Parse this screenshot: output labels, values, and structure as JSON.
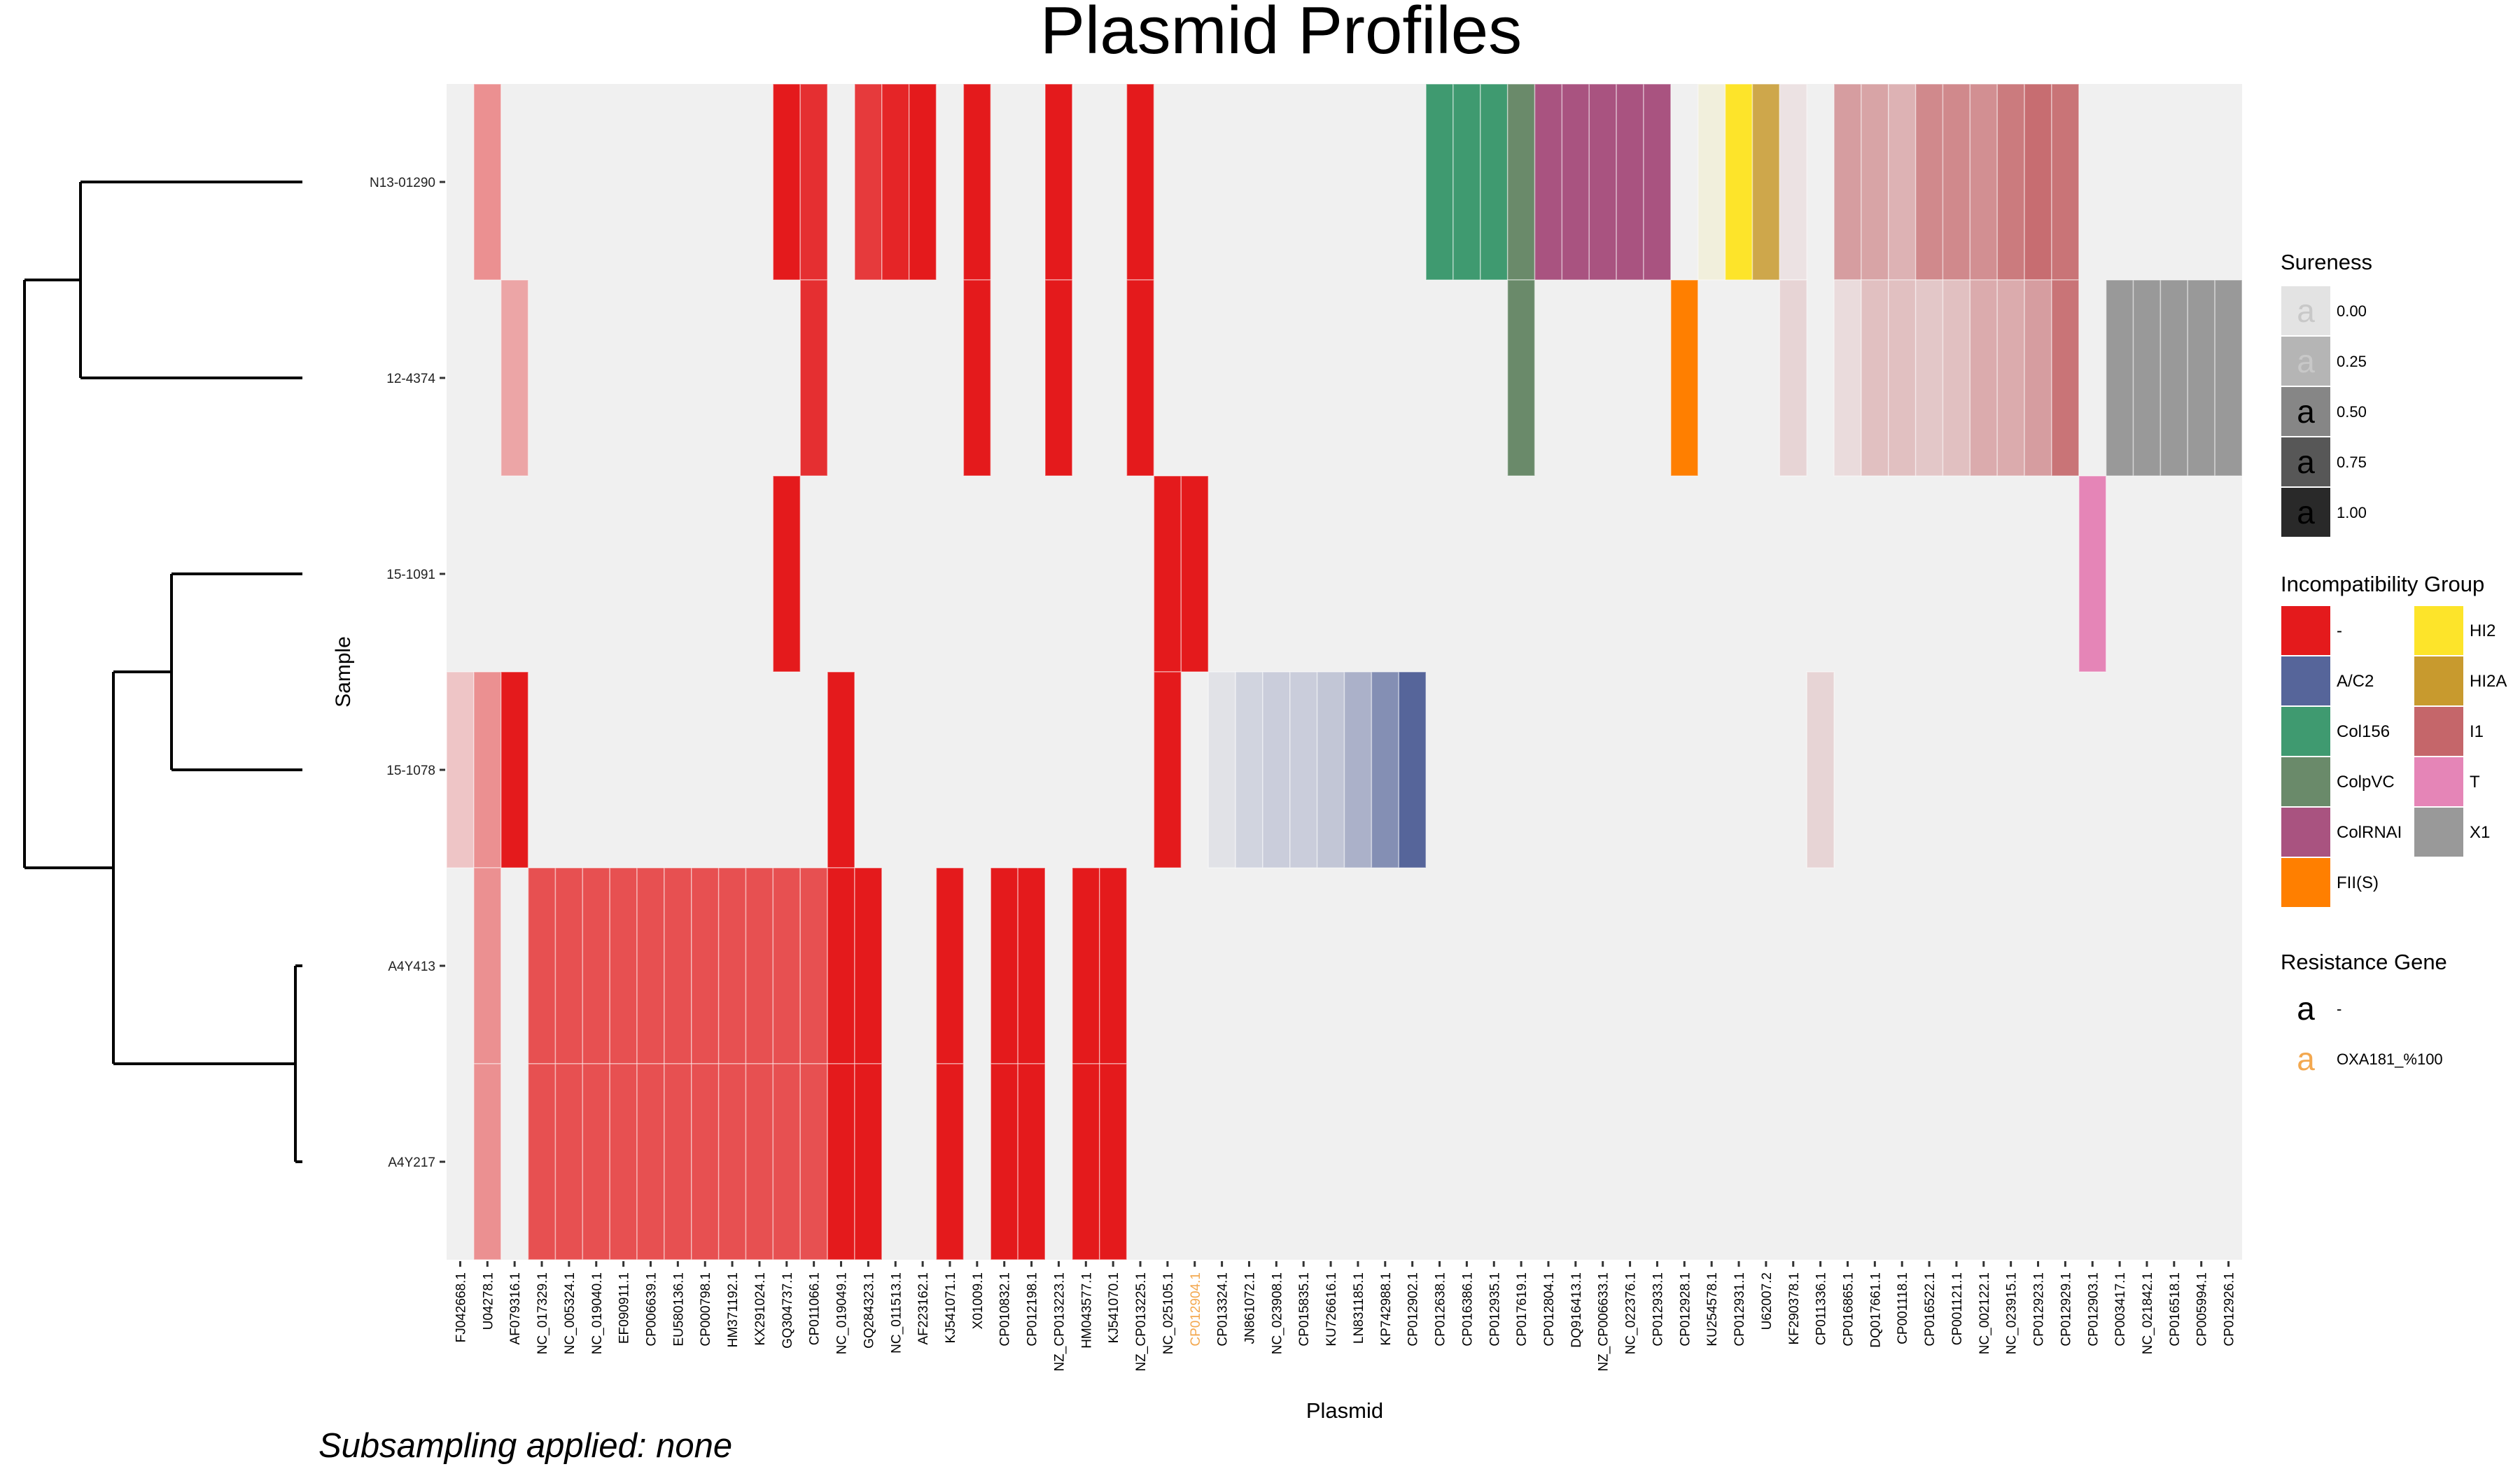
{
  "chart_data": {
    "type": "heatmap",
    "title": "Plasmid Profiles",
    "xlabel": "Plasmid",
    "ylabel": "Sample",
    "caption": "Subsampling applied: none",
    "samples": [
      "N13-01290",
      "12-4374",
      "15-1091",
      "15-1078",
      "A4Y413",
      "A4Y217"
    ],
    "plasmids": [
      {
        "name": "FJ042668.1",
        "group": "-",
        "gene": "-"
      },
      {
        "name": "U04278.1",
        "group": "-",
        "gene": "-"
      },
      {
        "name": "AF079316.1",
        "group": "-",
        "gene": "-"
      },
      {
        "name": "NC_017329.1",
        "group": "-",
        "gene": "-"
      },
      {
        "name": "NC_005324.1",
        "group": "-",
        "gene": "-"
      },
      {
        "name": "NC_019040.1",
        "group": "-",
        "gene": "-"
      },
      {
        "name": "EF090911.1",
        "group": "-",
        "gene": "-"
      },
      {
        "name": "CP006639.1",
        "group": "-",
        "gene": "-"
      },
      {
        "name": "EU580136.1",
        "group": "-",
        "gene": "-"
      },
      {
        "name": "CP000798.1",
        "group": "-",
        "gene": "-"
      },
      {
        "name": "HM371192.1",
        "group": "-",
        "gene": "-"
      },
      {
        "name": "KX291024.1",
        "group": "-",
        "gene": "-"
      },
      {
        "name": "GQ304737.1",
        "group": "-",
        "gene": "-"
      },
      {
        "name": "CP011066.1",
        "group": "-",
        "gene": "-"
      },
      {
        "name": "NC_019049.1",
        "group": "-",
        "gene": "-"
      },
      {
        "name": "GQ284323.1",
        "group": "-",
        "gene": "-"
      },
      {
        "name": "NC_011513.1",
        "group": "-",
        "gene": "-"
      },
      {
        "name": "AF223162.1",
        "group": "-",
        "gene": "-"
      },
      {
        "name": "KJ541071.1",
        "group": "-",
        "gene": "-"
      },
      {
        "name": "X01009.1",
        "group": "-",
        "gene": "-"
      },
      {
        "name": "CP010832.1",
        "group": "-",
        "gene": "-"
      },
      {
        "name": "CP012198.1",
        "group": "-",
        "gene": "-"
      },
      {
        "name": "NZ_CP013223.1",
        "group": "-",
        "gene": "-"
      },
      {
        "name": "HM043577.1",
        "group": "-",
        "gene": "-"
      },
      {
        "name": "KJ541070.1",
        "group": "-",
        "gene": "-"
      },
      {
        "name": "NZ_CP013225.1",
        "group": "-",
        "gene": "-"
      },
      {
        "name": "NC_025105.1",
        "group": "-",
        "gene": "-"
      },
      {
        "name": "CP012904.1",
        "group": "-",
        "gene": "OXA181_%100"
      },
      {
        "name": "CP013324.1",
        "group": "A/C2",
        "gene": "-"
      },
      {
        "name": "JN861072.1",
        "group": "A/C2",
        "gene": "-"
      },
      {
        "name": "NC_023908.1",
        "group": "A/C2",
        "gene": "-"
      },
      {
        "name": "CP015835.1",
        "group": "A/C2",
        "gene": "-"
      },
      {
        "name": "KU726616.1",
        "group": "A/C2",
        "gene": "-"
      },
      {
        "name": "LN831185.1",
        "group": "A/C2",
        "gene": "-"
      },
      {
        "name": "KP742988.1",
        "group": "A/C2",
        "gene": "-"
      },
      {
        "name": "CP012902.1",
        "group": "A/C2",
        "gene": "-"
      },
      {
        "name": "CP012638.1",
        "group": "Col156",
        "gene": "-"
      },
      {
        "name": "CP016386.1",
        "group": "Col156",
        "gene": "-"
      },
      {
        "name": "CP012935.1",
        "group": "Col156",
        "gene": "-"
      },
      {
        "name": "CP017619.1",
        "group": "ColpVC",
        "gene": "-"
      },
      {
        "name": "CP012804.1",
        "group": "ColRNAI",
        "gene": "-"
      },
      {
        "name": "DQ916413.1",
        "group": "ColRNAI",
        "gene": "-"
      },
      {
        "name": "NZ_CP006633.1",
        "group": "ColRNAI",
        "gene": "-"
      },
      {
        "name": "NC_022376.1",
        "group": "ColRNAI",
        "gene": "-"
      },
      {
        "name": "CP012933.1",
        "group": "ColRNAI",
        "gene": "-"
      },
      {
        "name": "CP012928.1",
        "group": "FII(S)",
        "gene": "-"
      },
      {
        "name": "KU254578.1",
        "group": "HI2",
        "gene": "-"
      },
      {
        "name": "CP012931.1",
        "group": "HI2",
        "gene": "-"
      },
      {
        "name": "U62007.2",
        "group": "HI2A",
        "gene": "-"
      },
      {
        "name": "KF290378.1",
        "group": "I1",
        "gene": "-"
      },
      {
        "name": "CP011336.1",
        "group": "I1",
        "gene": "-"
      },
      {
        "name": "CP016865.1",
        "group": "I1",
        "gene": "-"
      },
      {
        "name": "DQ017661.1",
        "group": "I1",
        "gene": "-"
      },
      {
        "name": "CP001118.1",
        "group": "I1",
        "gene": "-"
      },
      {
        "name": "CP016522.1",
        "group": "I1",
        "gene": "-"
      },
      {
        "name": "CP001121.1",
        "group": "I1",
        "gene": "-"
      },
      {
        "name": "NC_002122.1",
        "group": "I1",
        "gene": "-"
      },
      {
        "name": "NC_023915.1",
        "group": "I1",
        "gene": "-"
      },
      {
        "name": "CP012923.1",
        "group": "I1",
        "gene": "-"
      },
      {
        "name": "CP012929.1",
        "group": "I1",
        "gene": "-"
      },
      {
        "name": "CP012903.1",
        "group": "T",
        "gene": "-"
      },
      {
        "name": "CP003417.1",
        "group": "X1",
        "gene": "-"
      },
      {
        "name": "NC_021842.1",
        "group": "X1",
        "gene": "-"
      },
      {
        "name": "CP016518.1",
        "group": "X1",
        "gene": "-"
      },
      {
        "name": "CP005994.1",
        "group": "X1",
        "gene": "-"
      },
      {
        "name": "CP012926.1",
        "group": "X1",
        "gene": "-"
      }
    ],
    "cells": [
      {
        "sample": "N13-01290",
        "plasmid": "U04278.1",
        "sureness": 0.45
      },
      {
        "sample": "N13-01290",
        "plasmid": "GQ304737.1",
        "sureness": 1.0
      },
      {
        "sample": "N13-01290",
        "plasmid": "CP011066.1",
        "sureness": 0.9
      },
      {
        "sample": "N13-01290",
        "plasmid": "GQ284323.1",
        "sureness": 0.85
      },
      {
        "sample": "N13-01290",
        "plasmid": "NC_011513.1",
        "sureness": 0.95
      },
      {
        "sample": "N13-01290",
        "plasmid": "AF223162.1",
        "sureness": 1.0
      },
      {
        "sample": "N13-01290",
        "plasmid": "X01009.1",
        "sureness": 1.0
      },
      {
        "sample": "N13-01290",
        "plasmid": "NZ_CP013223.1",
        "sureness": 1.0
      },
      {
        "sample": "N13-01290",
        "plasmid": "NZ_CP013225.1",
        "sureness": 1.0
      },
      {
        "sample": "N13-01290",
        "plasmid": "CP012638.1",
        "sureness": 1.0
      },
      {
        "sample": "N13-01290",
        "plasmid": "CP016386.1",
        "sureness": 1.0
      },
      {
        "sample": "N13-01290",
        "plasmid": "CP012935.1",
        "sureness": 1.0
      },
      {
        "sample": "N13-01290",
        "plasmid": "CP017619.1",
        "sureness": 1.0
      },
      {
        "sample": "N13-01290",
        "plasmid": "CP012804.1",
        "sureness": 1.0
      },
      {
        "sample": "N13-01290",
        "plasmid": "DQ916413.1",
        "sureness": 1.0
      },
      {
        "sample": "N13-01290",
        "plasmid": "NZ_CP006633.1",
        "sureness": 1.0
      },
      {
        "sample": "N13-01290",
        "plasmid": "NC_022376.1",
        "sureness": 1.0
      },
      {
        "sample": "N13-01290",
        "plasmid": "CP012933.1",
        "sureness": 1.0
      },
      {
        "sample": "N13-01290",
        "plasmid": "KU254578.1",
        "sureness": 0.1
      },
      {
        "sample": "N13-01290",
        "plasmid": "CP012931.1",
        "sureness": 1.0
      },
      {
        "sample": "N13-01290",
        "plasmid": "U62007.2",
        "sureness": 0.85
      },
      {
        "sample": "N13-01290",
        "plasmid": "KF290378.1",
        "sureness": 0.1
      },
      {
        "sample": "N13-01290",
        "plasmid": "CP016865.1",
        "sureness": 0.6
      },
      {
        "sample": "N13-01290",
        "plasmid": "DQ017661.1",
        "sureness": 0.55
      },
      {
        "sample": "N13-01290",
        "plasmid": "CP001118.1",
        "sureness": 0.45
      },
      {
        "sample": "N13-01290",
        "plasmid": "CP016522.1",
        "sureness": 0.75
      },
      {
        "sample": "N13-01290",
        "plasmid": "CP001121.1",
        "sureness": 0.75
      },
      {
        "sample": "N13-01290",
        "plasmid": "NC_002122.1",
        "sureness": 0.7
      },
      {
        "sample": "N13-01290",
        "plasmid": "NC_023915.1",
        "sureness": 0.85
      },
      {
        "sample": "N13-01290",
        "plasmid": "CP012923.1",
        "sureness": 0.95
      },
      {
        "sample": "N13-01290",
        "plasmid": "CP012929.1",
        "sureness": 0.9
      },
      {
        "sample": "12-4374",
        "plasmid": "AF079316.1",
        "sureness": 0.35
      },
      {
        "sample": "12-4374",
        "plasmid": "CP011066.1",
        "sureness": 0.9
      },
      {
        "sample": "12-4374",
        "plasmid": "X01009.1",
        "sureness": 1.0
      },
      {
        "sample": "12-4374",
        "plasmid": "NZ_CP013223.1",
        "sureness": 1.0
      },
      {
        "sample": "12-4374",
        "plasmid": "NZ_CP013225.1",
        "sureness": 1.0
      },
      {
        "sample": "12-4374",
        "plasmid": "CP017619.1",
        "sureness": 1.0
      },
      {
        "sample": "12-4374",
        "plasmid": "CP012928.1",
        "sureness": 1.0
      },
      {
        "sample": "12-4374",
        "plasmid": "KF290378.1",
        "sureness": 0.2
      },
      {
        "sample": "12-4374",
        "plasmid": "CP016865.1",
        "sureness": 0.15
      },
      {
        "sample": "12-4374",
        "plasmid": "DQ017661.1",
        "sureness": 0.35
      },
      {
        "sample": "12-4374",
        "plasmid": "CP001118.1",
        "sureness": 0.35
      },
      {
        "sample": "12-4374",
        "plasmid": "CP016522.1",
        "sureness": 0.3
      },
      {
        "sample": "12-4374",
        "plasmid": "CP001121.1",
        "sureness": 0.35
      },
      {
        "sample": "12-4374",
        "plasmid": "NC_002122.1",
        "sureness": 0.5
      },
      {
        "sample": "12-4374",
        "plasmid": "NC_023915.1",
        "sureness": 0.5
      },
      {
        "sample": "12-4374",
        "plasmid": "CP012923.1",
        "sureness": 0.6
      },
      {
        "sample": "12-4374",
        "plasmid": "CP012929.1",
        "sureness": 0.9
      },
      {
        "sample": "12-4374",
        "plasmid": "CP003417.1",
        "sureness": 1.0
      },
      {
        "sample": "12-4374",
        "plasmid": "NC_021842.1",
        "sureness": 1.0
      },
      {
        "sample": "12-4374",
        "plasmid": "CP016518.1",
        "sureness": 1.0
      },
      {
        "sample": "12-4374",
        "plasmid": "CP005994.1",
        "sureness": 1.0
      },
      {
        "sample": "12-4374",
        "plasmid": "CP012926.1",
        "sureness": 1.0
      },
      {
        "sample": "15-1091",
        "plasmid": "GQ304737.1",
        "sureness": 1.0
      },
      {
        "sample": "15-1091",
        "plasmid": "NC_025105.1",
        "sureness": 1.0
      },
      {
        "sample": "15-1091",
        "plasmid": "CP012904.1",
        "sureness": 1.0
      },
      {
        "sample": "15-1091",
        "plasmid": "CP012903.1",
        "sureness": 1.0
      },
      {
        "sample": "15-1078",
        "plasmid": "FJ042668.1",
        "sureness": 0.2
      },
      {
        "sample": "15-1078",
        "plasmid": "U04278.1",
        "sureness": 0.45
      },
      {
        "sample": "15-1078",
        "plasmid": "AF079316.1",
        "sureness": 1.0
      },
      {
        "sample": "15-1078",
        "plasmid": "NC_019049.1",
        "sureness": 1.0
      },
      {
        "sample": "15-1078",
        "plasmid": "NC_025105.1",
        "sureness": 1.0
      },
      {
        "sample": "15-1078",
        "plasmid": "CP013324.1",
        "sureness": 0.1
      },
      {
        "sample": "15-1078",
        "plasmid": "JN861072.1",
        "sureness": 0.2
      },
      {
        "sample": "15-1078",
        "plasmid": "NC_023908.1",
        "sureness": 0.25
      },
      {
        "sample": "15-1078",
        "plasmid": "CP015835.1",
        "sureness": 0.25
      },
      {
        "sample": "15-1078",
        "plasmid": "KU726616.1",
        "sureness": 0.3
      },
      {
        "sample": "15-1078",
        "plasmid": "LN831185.1",
        "sureness": 0.45
      },
      {
        "sample": "15-1078",
        "plasmid": "KP742988.1",
        "sureness": 0.7
      },
      {
        "sample": "15-1078",
        "plasmid": "CP012902.1",
        "sureness": 1.0
      },
      {
        "sample": "15-1078",
        "plasmid": "CP011336.1",
        "sureness": 0.2
      },
      {
        "sample": "A4Y413",
        "plasmid": "U04278.1",
        "sureness": 0.45
      },
      {
        "sample": "A4Y413",
        "plasmid": "NC_017329.1",
        "sureness": 0.75
      },
      {
        "sample": "A4Y413",
        "plasmid": "NC_005324.1",
        "sureness": 0.75
      },
      {
        "sample": "A4Y413",
        "plasmid": "NC_019040.1",
        "sureness": 0.75
      },
      {
        "sample": "A4Y413",
        "plasmid": "EF090911.1",
        "sureness": 0.75
      },
      {
        "sample": "A4Y413",
        "plasmid": "CP006639.1",
        "sureness": 0.75
      },
      {
        "sample": "A4Y413",
        "plasmid": "EU580136.1",
        "sureness": 0.75
      },
      {
        "sample": "A4Y413",
        "plasmid": "CP000798.1",
        "sureness": 0.75
      },
      {
        "sample": "A4Y413",
        "plasmid": "HM371192.1",
        "sureness": 0.75
      },
      {
        "sample": "A4Y413",
        "plasmid": "KX291024.1",
        "sureness": 0.75
      },
      {
        "sample": "A4Y413",
        "plasmid": "GQ304737.1",
        "sureness": 0.75
      },
      {
        "sample": "A4Y413",
        "plasmid": "CP011066.1",
        "sureness": 0.75
      },
      {
        "sample": "A4Y413",
        "plasmid": "NC_019049.1",
        "sureness": 1.0
      },
      {
        "sample": "A4Y413",
        "plasmid": "GQ284323.1",
        "sureness": 1.0
      },
      {
        "sample": "A4Y413",
        "plasmid": "KJ541071.1",
        "sureness": 1.0
      },
      {
        "sample": "A4Y413",
        "plasmid": "CP010832.1",
        "sureness": 1.0
      },
      {
        "sample": "A4Y413",
        "plasmid": "CP012198.1",
        "sureness": 1.0
      },
      {
        "sample": "A4Y413",
        "plasmid": "HM043577.1",
        "sureness": 1.0
      },
      {
        "sample": "A4Y413",
        "plasmid": "KJ541070.1",
        "sureness": 1.0
      },
      {
        "sample": "A4Y217",
        "plasmid": "U04278.1",
        "sureness": 0.45
      },
      {
        "sample": "A4Y217",
        "plasmid": "NC_017329.1",
        "sureness": 0.75
      },
      {
        "sample": "A4Y217",
        "plasmid": "NC_005324.1",
        "sureness": 0.75
      },
      {
        "sample": "A4Y217",
        "plasmid": "NC_019040.1",
        "sureness": 0.75
      },
      {
        "sample": "A4Y217",
        "plasmid": "EF090911.1",
        "sureness": 0.75
      },
      {
        "sample": "A4Y217",
        "plasmid": "CP006639.1",
        "sureness": 0.75
      },
      {
        "sample": "A4Y217",
        "plasmid": "EU580136.1",
        "sureness": 0.75
      },
      {
        "sample": "A4Y217",
        "plasmid": "CP000798.1",
        "sureness": 0.75
      },
      {
        "sample": "A4Y217",
        "plasmid": "HM371192.1",
        "sureness": 0.75
      },
      {
        "sample": "A4Y217",
        "plasmid": "KX291024.1",
        "sureness": 0.75
      },
      {
        "sample": "A4Y217",
        "plasmid": "GQ304737.1",
        "sureness": 0.75
      },
      {
        "sample": "A4Y217",
        "plasmid": "CP011066.1",
        "sureness": 0.75
      },
      {
        "sample": "A4Y217",
        "plasmid": "NC_019049.1",
        "sureness": 1.0
      },
      {
        "sample": "A4Y217",
        "plasmid": "GQ284323.1",
        "sureness": 1.0
      },
      {
        "sample": "A4Y217",
        "plasmid": "KJ541071.1",
        "sureness": 1.0
      },
      {
        "sample": "A4Y217",
        "plasmid": "CP010832.1",
        "sureness": 1.0
      },
      {
        "sample": "A4Y217",
        "plasmid": "CP012198.1",
        "sureness": 1.0
      },
      {
        "sample": "A4Y217",
        "plasmid": "HM043577.1",
        "sureness": 1.0
      },
      {
        "sample": "A4Y217",
        "plasmid": "KJ541070.1",
        "sureness": 1.0
      }
    ],
    "legends": {
      "sureness": {
        "title": "Sureness",
        "glyph": "a",
        "values": [
          0.0,
          0.25,
          0.5,
          0.75,
          1.0
        ],
        "labels": [
          "0.00",
          "0.25",
          "0.50",
          "0.75",
          "1.00"
        ],
        "colors": [
          "#e3e3e3",
          "#b5b5b5",
          "#868686",
          "#575757",
          "#292929"
        ]
      },
      "incompatibility_group": {
        "title": "Incompatibility Group",
        "items": [
          {
            "label": "-",
            "color": "#e41a1c"
          },
          {
            "label": "A/C2",
            "color": "#56659a"
          },
          {
            "label": "Col156",
            "color": "#3f9a70"
          },
          {
            "label": "ColpVC",
            "color": "#6a8a6a"
          },
          {
            "label": "ColRNAI",
            "color": "#a95380"
          },
          {
            "label": "FII(S)",
            "color": "#ff7f00"
          },
          {
            "label": "HI2",
            "color": "#fde42a"
          },
          {
            "label": "HI2A",
            "color": "#c89a2e"
          },
          {
            "label": "I1",
            "color": "#c5666a"
          },
          {
            "label": "T",
            "color": "#e585b7"
          },
          {
            "label": "X1",
            "color": "#999999"
          }
        ]
      },
      "resistance_gene": {
        "title": "Resistance Gene",
        "glyph": "a",
        "items": [
          {
            "label": "-",
            "color": "#000000"
          },
          {
            "label": "OXA181_%100",
            "color": "#f3a84f"
          }
        ]
      }
    },
    "dendrogram": "((N13-01290,12-4374),((15-1091,15-1078),(A4Y413,A4Y217)))",
    "panel_background": "#f0f0f0"
  }
}
